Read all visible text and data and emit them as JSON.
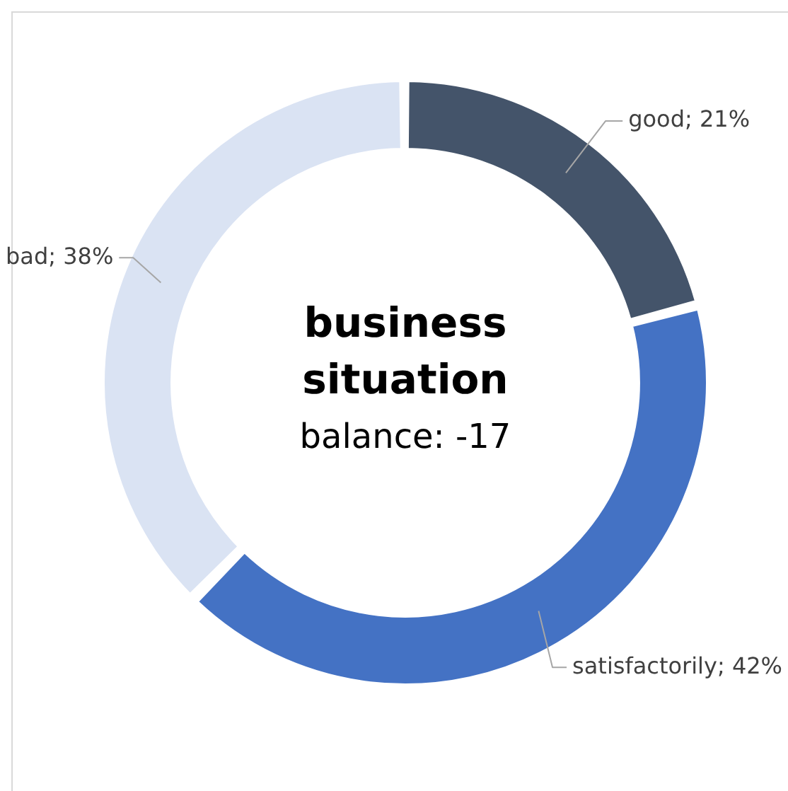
{
  "chart_data": {
    "type": "donut",
    "title": "business situation",
    "subtitle": "balance: -17",
    "categories": [
      "good",
      "satisfactorily",
      "bad"
    ],
    "values": [
      21,
      42,
      38
    ],
    "colors": [
      "#44546a",
      "#4472c4",
      "#dae3f3"
    ],
    "value_labels": [
      "21%",
      "42%",
      "38%"
    ],
    "legend": false
  }
}
